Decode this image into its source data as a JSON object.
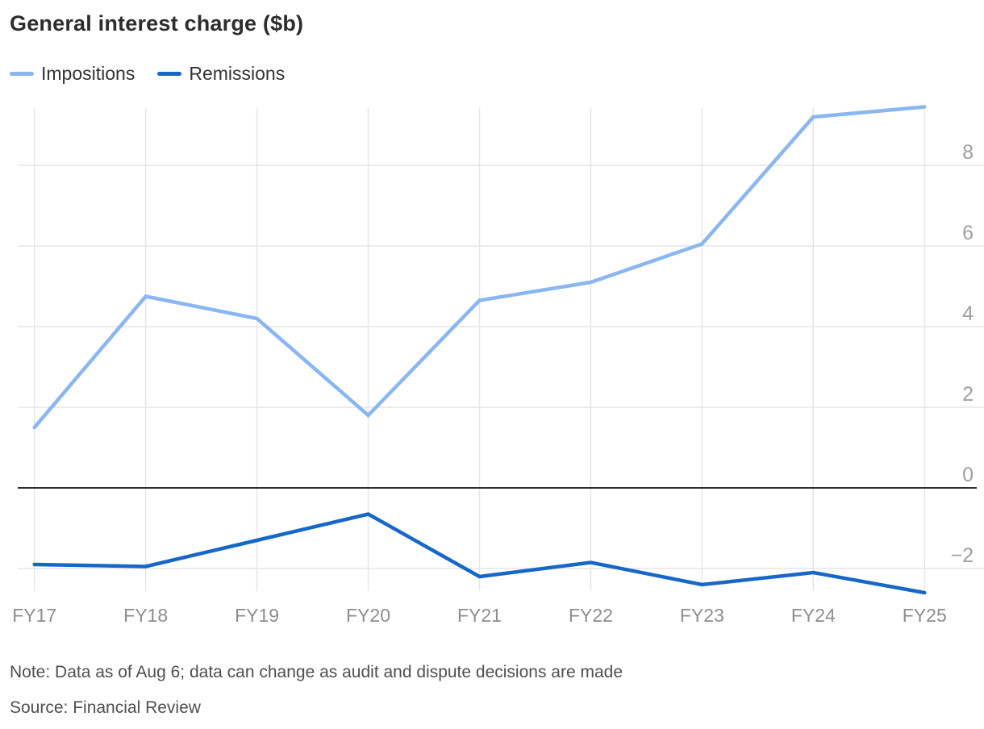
{
  "title": "General interest charge ($b)",
  "legend": [
    {
      "label": "Impositions",
      "color": "#8ab6f2"
    },
    {
      "label": "Remissions",
      "color": "#1767c9"
    }
  ],
  "note": "Note: Data as of Aug 6; data can change as audit and dispute decisions are made",
  "source": "Source: Financial Review",
  "chart_data": {
    "type": "line",
    "title": "General interest charge ($b)",
    "x": [
      "FY17",
      "FY18",
      "FY19",
      "FY20",
      "FY21",
      "FY22",
      "FY23",
      "FY24",
      "FY25"
    ],
    "series": [
      {
        "name": "Impositions",
        "color": "#8ab6f2",
        "values": [
          1.5,
          4.75,
          4.2,
          1.8,
          4.65,
          5.1,
          6.05,
          9.2,
          9.45
        ]
      },
      {
        "name": "Remissions",
        "color": "#1767c9",
        "values": [
          -1.9,
          -1.95,
          -1.3,
          -0.65,
          -2.2,
          -1.85,
          -2.4,
          -2.1,
          -2.6
        ]
      }
    ],
    "yticks": [
      8,
      6,
      4,
      2,
      0,
      -2
    ],
    "ylim": [
      -2.95,
      9.45
    ],
    "zero_line": true,
    "grid": true,
    "legend_position": "top-left",
    "y_axis_side": "right",
    "colors": {
      "grid": "#e6e6e6",
      "zero_line": "#2f2f2f",
      "y_tick_label": "#a0a0a0",
      "x_tick_label": "#8e8e8e"
    }
  }
}
